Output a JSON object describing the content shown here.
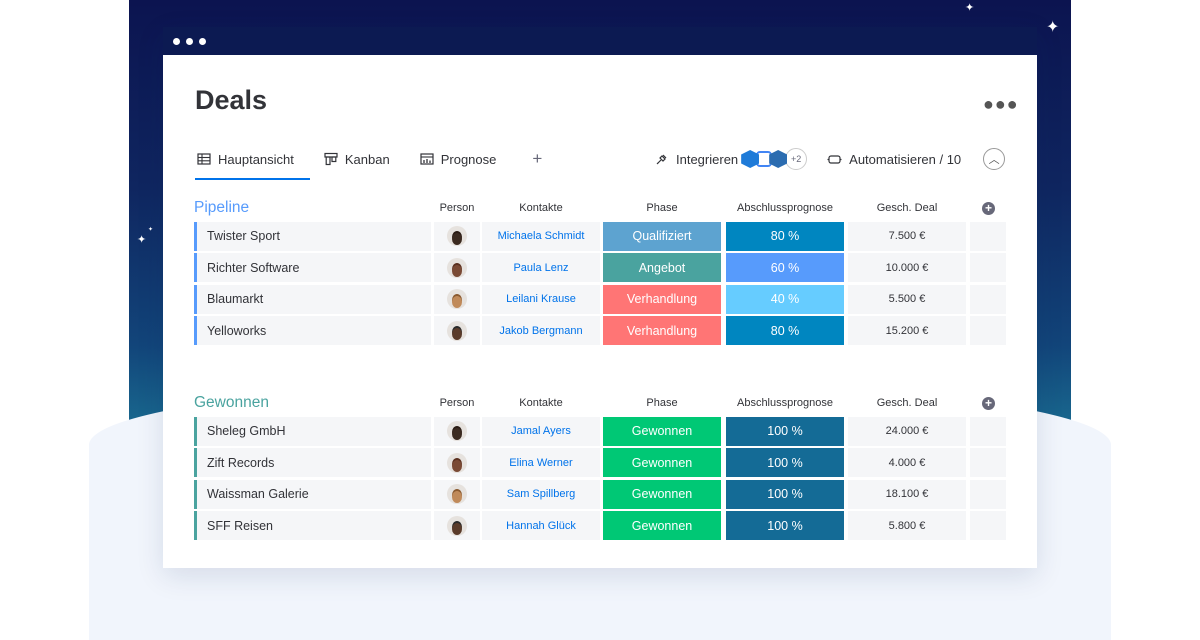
{
  "window": {
    "title": "Deals"
  },
  "tabs": [
    {
      "label": "Hauptansicht",
      "icon": "table-icon",
      "active": true
    },
    {
      "label": "Kanban",
      "icon": "kanban-icon",
      "active": false
    },
    {
      "label": "Prognose",
      "icon": "chart-icon",
      "active": false
    }
  ],
  "tools": {
    "integrate_label": "Integrieren",
    "integrations_more": "+2",
    "automate_label": "Automatisieren / 10"
  },
  "columns": {
    "person": "Person",
    "contacts": "Kontakte",
    "phase": "Phase",
    "forecast": "Abschlussprognose",
    "deal": "Gesch. Deal"
  },
  "groups": [
    {
      "title": "Pipeline",
      "color": "#579bfc",
      "rows": [
        {
          "name": "Twister Sport",
          "contact": "Michaela Schmidt",
          "phase": "Qualifiziert",
          "phase_color": "#5da3d0",
          "forecast": "80 %",
          "forecast_color": "#0086c0",
          "deal": "7.500 €"
        },
        {
          "name": "Richter Software",
          "contact": "Paula Lenz",
          "phase": "Angebot",
          "phase_color": "#4aa39f",
          "forecast": "60 %",
          "forecast_color": "#579bfc",
          "deal": "10.000 €"
        },
        {
          "name": "Blaumarkt",
          "contact": "Leilani Krause",
          "phase": "Verhandlung",
          "phase_color": "#ff7575",
          "forecast": "40 %",
          "forecast_color": "#66ccff",
          "deal": "5.500 €"
        },
        {
          "name": "Yelloworks",
          "contact": "Jakob Bergmann",
          "phase": "Verhandlung",
          "phase_color": "#ff7575",
          "forecast": "80 %",
          "forecast_color": "#0086c0",
          "deal": "15.200 €"
        }
      ]
    },
    {
      "title": "Gewonnen",
      "color": "#4aa39f",
      "rows": [
        {
          "name": "Sheleg GmbH",
          "contact": "Jamal Ayers",
          "phase": "Gewonnen",
          "phase_color": "#00c875",
          "forecast": "100 %",
          "forecast_color": "#146b96",
          "deal": "24.000 €"
        },
        {
          "name": "Zift Records",
          "contact": "Elina Werner",
          "phase": "Gewonnen",
          "phase_color": "#00c875",
          "forecast": "100 %",
          "forecast_color": "#146b96",
          "deal": "4.000 €"
        },
        {
          "name": "Waissman Galerie",
          "contact": "Sam Spillberg",
          "phase": "Gewonnen",
          "phase_color": "#00c875",
          "forecast": "100 %",
          "forecast_color": "#146b96",
          "deal": "18.100 €"
        },
        {
          "name": "SFF Reisen",
          "contact": "Hannah Glück",
          "phase": "Gewonnen",
          "phase_color": "#00c875",
          "forecast": "100 %",
          "forecast_color": "#146b96",
          "deal": "5.800 €"
        }
      ]
    }
  ]
}
